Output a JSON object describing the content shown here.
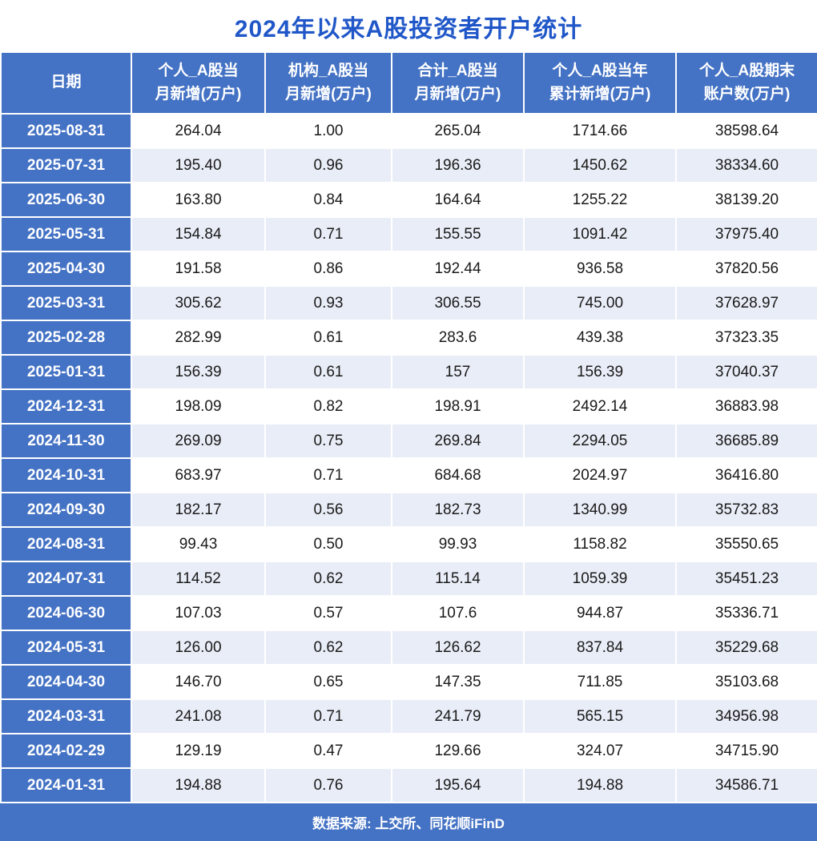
{
  "colors": {
    "header_bg": "#4472C4",
    "row_alt_bg": "#E9EDF7",
    "title_color": "#2057C8"
  },
  "chart_data": {
    "type": "table",
    "title": "2024年以来A股投资者开户统计",
    "source": "数据来源: 上交所、同花顺iFinD",
    "columns": [
      {
        "line1": "日期",
        "line2": ""
      },
      {
        "line1": "个人_A股当",
        "line2": "月新增(万户)"
      },
      {
        "line1": "机构_A股当",
        "line2": "月新增(万户)"
      },
      {
        "line1": "合计_A股当",
        "line2": "月新增(万户)"
      },
      {
        "line1": "个人_A股当年",
        "line2": "累计新增(万户)"
      },
      {
        "line1": "个人_A股期末",
        "line2": "账户数(万户)"
      }
    ],
    "rows": [
      {
        "date": "2025-08-31",
        "values": [
          "264.04",
          "1.00",
          "265.04",
          "1714.66",
          "38598.64"
        ]
      },
      {
        "date": "2025-07-31",
        "values": [
          "195.40",
          "0.96",
          "196.36",
          "1450.62",
          "38334.60"
        ]
      },
      {
        "date": "2025-06-30",
        "values": [
          "163.80",
          "0.84",
          "164.64",
          "1255.22",
          "38139.20"
        ]
      },
      {
        "date": "2025-05-31",
        "values": [
          "154.84",
          "0.71",
          "155.55",
          "1091.42",
          "37975.40"
        ]
      },
      {
        "date": "2025-04-30",
        "values": [
          "191.58",
          "0.86",
          "192.44",
          "936.58",
          "37820.56"
        ]
      },
      {
        "date": "2025-03-31",
        "values": [
          "305.62",
          "0.93",
          "306.55",
          "745.00",
          "37628.97"
        ]
      },
      {
        "date": "2025-02-28",
        "values": [
          "282.99",
          "0.61",
          "283.6",
          "439.38",
          "37323.35"
        ]
      },
      {
        "date": "2025-01-31",
        "values": [
          "156.39",
          "0.61",
          "157",
          "156.39",
          "37040.37"
        ]
      },
      {
        "date": "2024-12-31",
        "values": [
          "198.09",
          "0.82",
          "198.91",
          "2492.14",
          "36883.98"
        ]
      },
      {
        "date": "2024-11-30",
        "values": [
          "269.09",
          "0.75",
          "269.84",
          "2294.05",
          "36685.89"
        ]
      },
      {
        "date": "2024-10-31",
        "values": [
          "683.97",
          "0.71",
          "684.68",
          "2024.97",
          "36416.80"
        ]
      },
      {
        "date": "2024-09-30",
        "values": [
          "182.17",
          "0.56",
          "182.73",
          "1340.99",
          "35732.83"
        ]
      },
      {
        "date": "2024-08-31",
        "values": [
          "99.43",
          "0.50",
          "99.93",
          "1158.82",
          "35550.65"
        ]
      },
      {
        "date": "2024-07-31",
        "values": [
          "114.52",
          "0.62",
          "115.14",
          "1059.39",
          "35451.23"
        ]
      },
      {
        "date": "2024-06-30",
        "values": [
          "107.03",
          "0.57",
          "107.6",
          "944.87",
          "35336.71"
        ]
      },
      {
        "date": "2024-05-31",
        "values": [
          "126.00",
          "0.62",
          "126.62",
          "837.84",
          "35229.68"
        ]
      },
      {
        "date": "2024-04-30",
        "values": [
          "146.70",
          "0.65",
          "147.35",
          "711.85",
          "35103.68"
        ]
      },
      {
        "date": "2024-03-31",
        "values": [
          "241.08",
          "0.71",
          "241.79",
          "565.15",
          "34956.98"
        ]
      },
      {
        "date": "2024-02-29",
        "values": [
          "129.19",
          "0.47",
          "129.66",
          "324.07",
          "34715.90"
        ]
      },
      {
        "date": "2024-01-31",
        "values": [
          "194.88",
          "0.76",
          "195.64",
          "194.88",
          "34586.71"
        ]
      }
    ]
  }
}
